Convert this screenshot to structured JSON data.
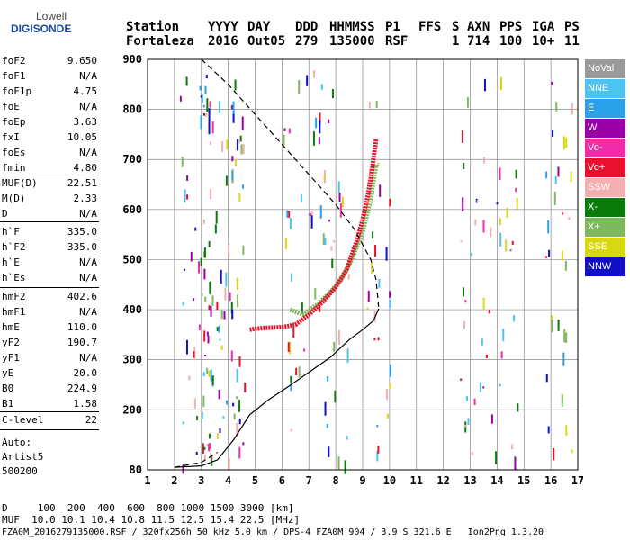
{
  "logo": {
    "line1": "Lowell",
    "line2": "DIGISONDE"
  },
  "header": {
    "labels": [
      "Station",
      "YYYY",
      "DAY",
      "DDD",
      "HHMMSS",
      "P1",
      "FFS",
      "S",
      "AXN",
      "PPS",
      "IGA",
      "PS"
    ],
    "values": [
      "Fortaleza",
      "2016",
      "Out05",
      "279",
      "135000",
      "RSF",
      "1",
      "714",
      "100",
      "10+",
      "11"
    ]
  },
  "params": {
    "group1": [
      {
        "label": "foF2",
        "value": "9.650"
      },
      {
        "label": "foF1",
        "value": "N/A"
      },
      {
        "label": "foF1p",
        "value": "4.75"
      },
      {
        "label": "foE",
        "value": "N/A"
      },
      {
        "label": "foEp",
        "value": "3.63"
      },
      {
        "label": "fxI",
        "value": "10.05"
      },
      {
        "label": "foEs",
        "value": "N/A"
      },
      {
        "label": "fmin",
        "value": "4.80"
      }
    ],
    "group2": [
      {
        "label": "MUF(D)",
        "value": "22.51"
      },
      {
        "label": "M(D)",
        "value": "2.33"
      },
      {
        "label": "D",
        "value": "N/A"
      }
    ],
    "group3": [
      {
        "label": "h`F",
        "value": "335.0"
      },
      {
        "label": "h`F2",
        "value": "335.0"
      },
      {
        "label": "h`E",
        "value": "N/A"
      },
      {
        "label": "h`Es",
        "value": "N/A"
      }
    ],
    "group4": [
      {
        "label": "hmF2",
        "value": "402.6"
      },
      {
        "label": "hmF1",
        "value": "N/A"
      },
      {
        "label": "hmE",
        "value": "110.0"
      },
      {
        "label": "yF2",
        "value": "190.7"
      },
      {
        "label": "yF1",
        "value": "N/A"
      },
      {
        "label": "yE",
        "value": "20.0"
      },
      {
        "label": "B0",
        "value": "224.9"
      },
      {
        "label": "B1",
        "value": "1.58"
      }
    ],
    "clevel": {
      "label": "C-level",
      "value": "22"
    },
    "auto": [
      "Auto:",
      "Artist5",
      "500200"
    ]
  },
  "legend": [
    {
      "label": "NoVal",
      "color": "#9a9a9a"
    },
    {
      "label": "NNE",
      "color": "#4cc3f0"
    },
    {
      "label": "E",
      "color": "#2aa0e8"
    },
    {
      "label": "W",
      "color": "#9b00a8"
    },
    {
      "label": "Vo-",
      "color": "#f02ca8"
    },
    {
      "label": "Vo+",
      "color": "#e8102c"
    },
    {
      "label": "SSW",
      "color": "#f4b0b0"
    },
    {
      "label": "X-",
      "color": "#0a7a0a"
    },
    {
      "label": "X+",
      "color": "#80b860"
    },
    {
      "label": "SSE",
      "color": "#d8d810"
    },
    {
      "label": "NNW",
      "color": "#1010c8"
    }
  ],
  "chart_data": {
    "type": "scatter",
    "xlim": [
      1,
      17
    ],
    "ylim": [
      80,
      900
    ],
    "xticks": [
      "1",
      "2",
      "3",
      "4",
      "5",
      "6",
      "7",
      "8",
      "9",
      "10",
      "11",
      "12",
      "13",
      "14",
      "15",
      "16",
      "17"
    ],
    "yticks": [
      "80",
      "200",
      "300",
      "400",
      "500",
      "600",
      "700",
      "800",
      "900"
    ],
    "xunit": "MHz",
    "yunit": "km",
    "grid": true,
    "trace_o": [
      [
        4.8,
        360
      ],
      [
        5.0,
        362
      ],
      [
        5.5,
        364
      ],
      [
        6.0,
        365
      ],
      [
        6.5,
        370
      ],
      [
        7.0,
        390
      ],
      [
        7.5,
        415
      ],
      [
        8.0,
        445
      ],
      [
        8.4,
        480
      ],
      [
        8.8,
        540
      ],
      [
        9.0,
        580
      ],
      [
        9.2,
        630
      ],
      [
        9.35,
        680
      ],
      [
        9.5,
        740
      ]
    ],
    "trace_x": [
      [
        6.3,
        400
      ],
      [
        6.8,
        390
      ],
      [
        7.3,
        410
      ],
      [
        7.8,
        435
      ],
      [
        8.2,
        460
      ],
      [
        8.6,
        500
      ],
      [
        9.0,
        555
      ],
      [
        9.3,
        620
      ],
      [
        9.5,
        690
      ]
    ],
    "profile": [
      [
        2.0,
        85
      ],
      [
        3.0,
        88
      ],
      [
        3.6,
        100
      ],
      [
        4.2,
        140
      ],
      [
        4.8,
        190
      ],
      [
        5.5,
        220
      ],
      [
        6.2,
        245
      ],
      [
        7.0,
        275
      ],
      [
        7.8,
        305
      ],
      [
        8.5,
        340
      ],
      [
        9.0,
        360
      ],
      [
        9.4,
        378
      ],
      [
        9.6,
        402
      ]
    ],
    "profile_dashed_top": [
      [
        3.0,
        900
      ],
      [
        4.0,
        850
      ],
      [
        5.0,
        790
      ],
      [
        6.0,
        730
      ],
      [
        7.0,
        670
      ],
      [
        8.0,
        610
      ],
      [
        8.7,
        560
      ],
      [
        9.3,
        500
      ],
      [
        9.5,
        460
      ],
      [
        9.6,
        402
      ]
    ],
    "profile_dashed_low": [
      [
        2.0,
        85
      ],
      [
        3.0,
        95
      ],
      [
        3.6,
        115
      ]
    ]
  },
  "footer": {
    "d_row": "D     100  200  400  600  800 1000 1500 3000 [km]",
    "muf_row": "MUF  10.0 10.1 10.4 10.8 11.5 12.5 15.4 22.5 [MHz]",
    "file_row": "FZA0M_2016279135000.RSF / 320fx256h 50 kHz 5.0 km / DPS-4 FZA0M 904 / 3.9 S 321.6 E   Ion2Png 1.3.20"
  }
}
